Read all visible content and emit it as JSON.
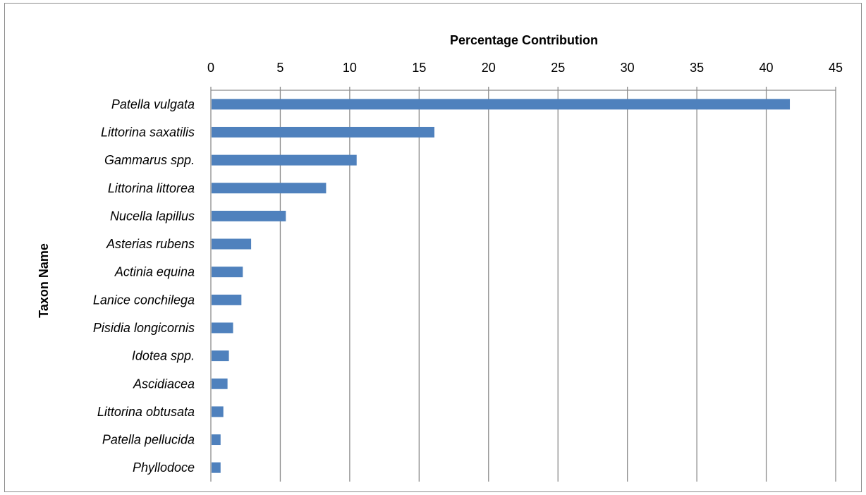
{
  "chart_data": {
    "type": "bar",
    "orientation": "horizontal",
    "xlabel": "Percentage Contribution",
    "ylabel": "Taxon Name",
    "xlim": [
      0,
      45
    ],
    "xticks": [
      0,
      5,
      10,
      15,
      20,
      25,
      30,
      35,
      40,
      45
    ],
    "x_axis_position": "top",
    "grid": "vertical",
    "bar_color": "#4f81bd",
    "grid_color": "#8c8c8c",
    "categories": [
      "Patella vulgata",
      "Littorina saxatilis",
      "Gammarus spp.",
      "Littorina littorea",
      "Nucella lapillus",
      "Asterias rubens",
      "Actinia equina",
      "Lanice conchilega",
      "Pisidia longicornis",
      "Idotea spp.",
      "Ascidiacea",
      "Littorina obtusata",
      "Patella pellucida",
      "Phyllodoce"
    ],
    "values": [
      41.7,
      16.1,
      10.5,
      8.3,
      5.4,
      2.9,
      2.3,
      2.2,
      1.6,
      1.3,
      1.2,
      0.9,
      0.7,
      0.7
    ]
  }
}
